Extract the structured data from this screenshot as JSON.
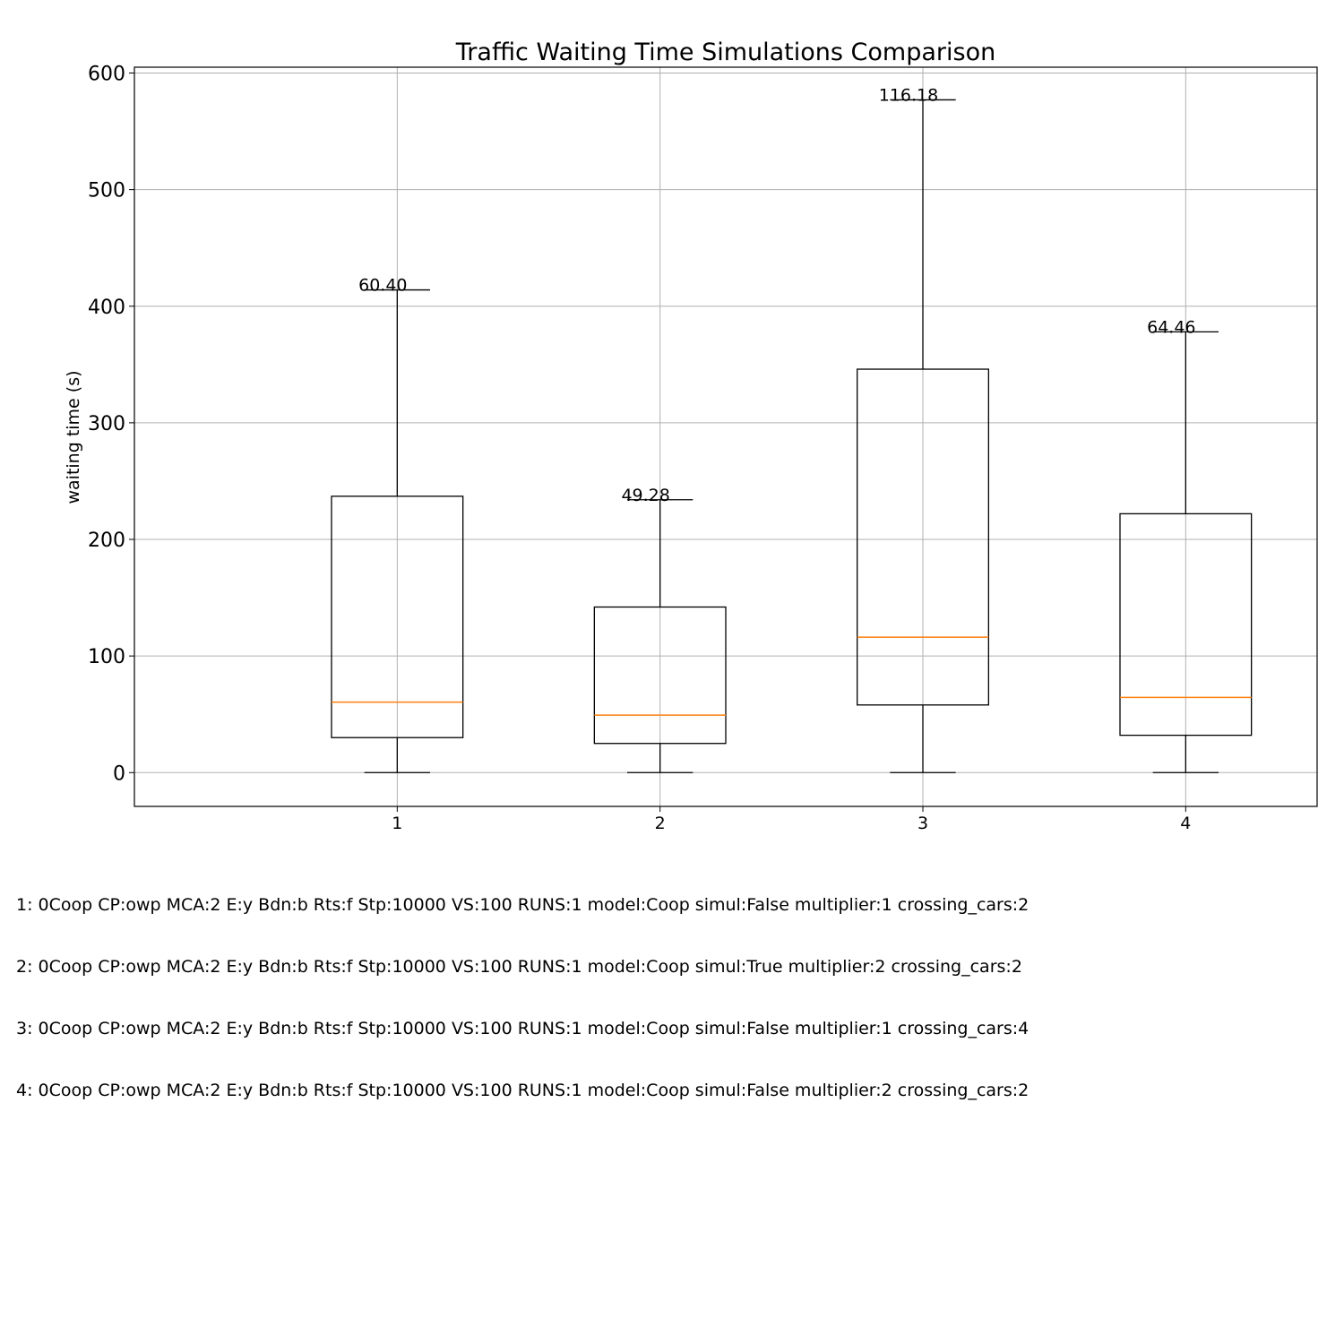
{
  "chart_data": {
    "type": "box",
    "title": "Traffic Waiting Time Simulations Comparison",
    "xlabel": "",
    "ylabel": "waiting time (s)",
    "ylim": [
      -29,
      605
    ],
    "xlim": [
      0,
      4.5
    ],
    "yticks": [
      0,
      100,
      200,
      300,
      400,
      500,
      600
    ],
    "grid": true,
    "categories": [
      "1",
      "2",
      "3",
      "4"
    ],
    "boxes": [
      {
        "label": "1",
        "whisker_low": 0,
        "q1": 30,
        "median": 60.4,
        "q3": 237,
        "whisker_high": 414,
        "annotation": "60.40"
      },
      {
        "label": "2",
        "whisker_low": 0,
        "q1": 25,
        "median": 49.28,
        "q3": 142,
        "whisker_high": 234,
        "annotation": "49.28"
      },
      {
        "label": "3",
        "whisker_low": 0,
        "q1": 58,
        "median": 116.18,
        "q3": 346,
        "whisker_high": 577,
        "annotation": "116.18"
      },
      {
        "label": "4",
        "whisker_low": 0,
        "q1": 32,
        "median": 64.46,
        "q3": 222,
        "whisker_high": 378,
        "annotation": "64.46"
      }
    ],
    "colors": {
      "box": "#000000",
      "median": "#ff7f0e",
      "grid": "#b0b0b0"
    }
  },
  "notes": [
    "1: 0Coop CP:owp MCA:2 E:y Bdn:b Rts:f Stp:10000 VS:100 RUNS:1 model:Coop simul:False multiplier:1 crossing_cars:2",
    "2: 0Coop CP:owp MCA:2 E:y Bdn:b Rts:f Stp:10000 VS:100 RUNS:1 model:Coop simul:True multiplier:2 crossing_cars:2",
    "3: 0Coop CP:owp MCA:2 E:y Bdn:b Rts:f Stp:10000 VS:100 RUNS:1 model:Coop simul:False multiplier:1 crossing_cars:4",
    "4: 0Coop CP:owp MCA:2 E:y Bdn:b Rts:f Stp:10000 VS:100 RUNS:1 model:Coop simul:False multiplier:2 crossing_cars:2"
  ]
}
